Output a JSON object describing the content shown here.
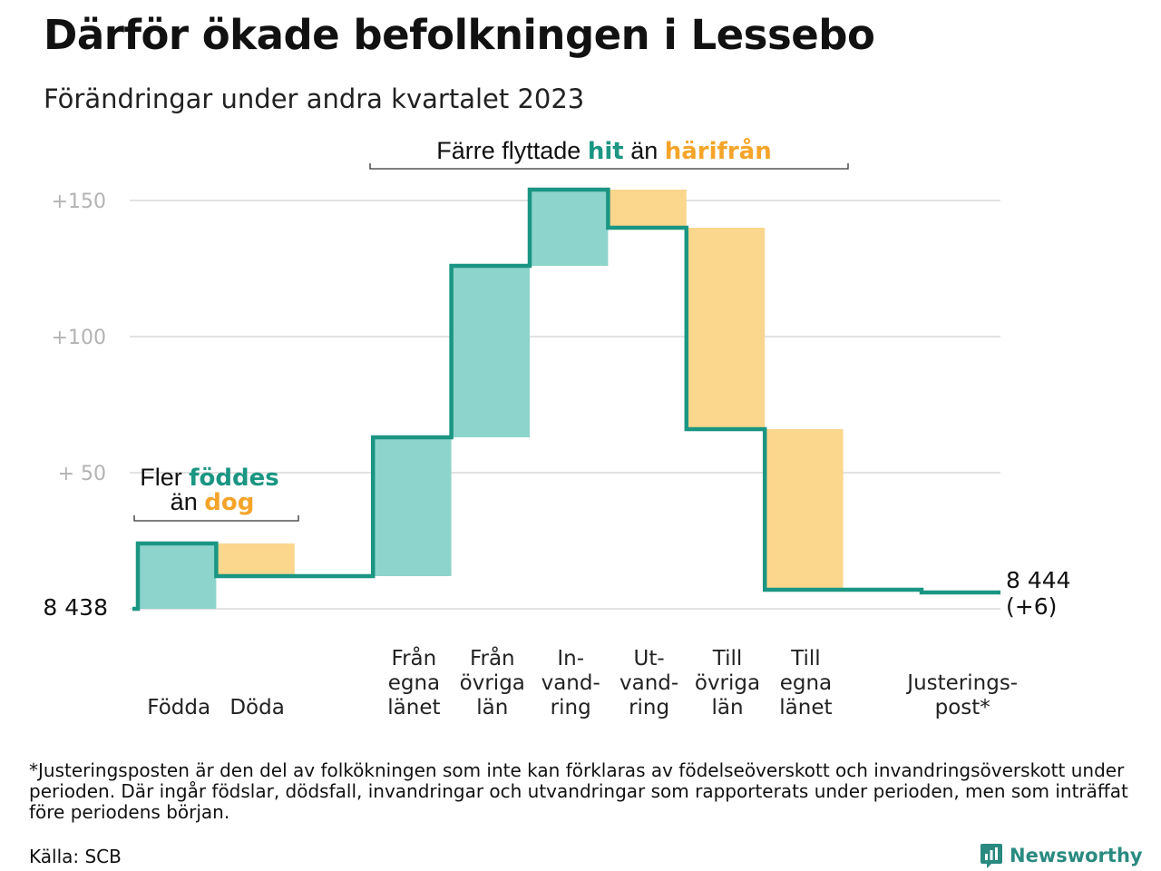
{
  "title": "Därför ökade befolkningen i Lessebo",
  "subtitle": "Förändringar under andra kvartalet 2023",
  "footnote": "*Justeringsposten är den del av folkökningen som inte kan förklaras av födelseöverskott och invandringsöverskott under perioden. Där ingår födslar, dödsfall, invandringar och utvandringar som rapporterats under perioden, men som inträffat före periodens början.",
  "source": "Källa: SCB",
  "brand": "Newsworthy",
  "colors": {
    "increase": "#8dd4cc",
    "decrease": "#fbd68d",
    "line": "#1a9683",
    "hit": "#1a9683",
    "harifran": "#f5a42a",
    "grid": "#e2e2e2"
  },
  "annotations": {
    "births": {
      "pre": "Fler ",
      "hl1": "föddes",
      "mid": "än ",
      "hl2": "dog"
    },
    "migration": {
      "pre": "Färre flyttade ",
      "hl1": "hit",
      "mid": " än ",
      "hl2": "härifrån"
    }
  },
  "chart_data": {
    "type": "waterfall",
    "start_value": 8438,
    "start_label": "8  438",
    "end_value": 8444,
    "end_label": "8 444",
    "end_change_label": "(+6)",
    "ylim": [
      -6,
      158
    ],
    "yticks": [
      {
        "value": 50,
        "label": "+  50"
      },
      {
        "value": 100,
        "label": "+100"
      },
      {
        "value": 150,
        "label": "+150"
      }
    ],
    "steps": [
      {
        "label": [
          "Födda"
        ],
        "change": 24
      },
      {
        "label": [
          "Döda"
        ],
        "change": -12
      },
      {
        "label": [],
        "change": 0
      },
      {
        "label": [
          "Från",
          "egna",
          "länet"
        ],
        "change": 51
      },
      {
        "label": [
          "Från",
          "övriga",
          "län"
        ],
        "change": 63
      },
      {
        "label": [
          "In-",
          "vand-",
          "ring"
        ],
        "change": 28
      },
      {
        "label": [
          "Ut-",
          "vand-",
          "ring"
        ],
        "change": -14
      },
      {
        "label": [
          "Till",
          "övriga",
          "län"
        ],
        "change": -74
      },
      {
        "label": [
          "Till",
          "egna",
          "länet"
        ],
        "change": -59
      },
      {
        "label": [],
        "change": 0
      },
      {
        "label": [
          "Justerings-",
          "post*"
        ],
        "change": -1
      }
    ]
  }
}
